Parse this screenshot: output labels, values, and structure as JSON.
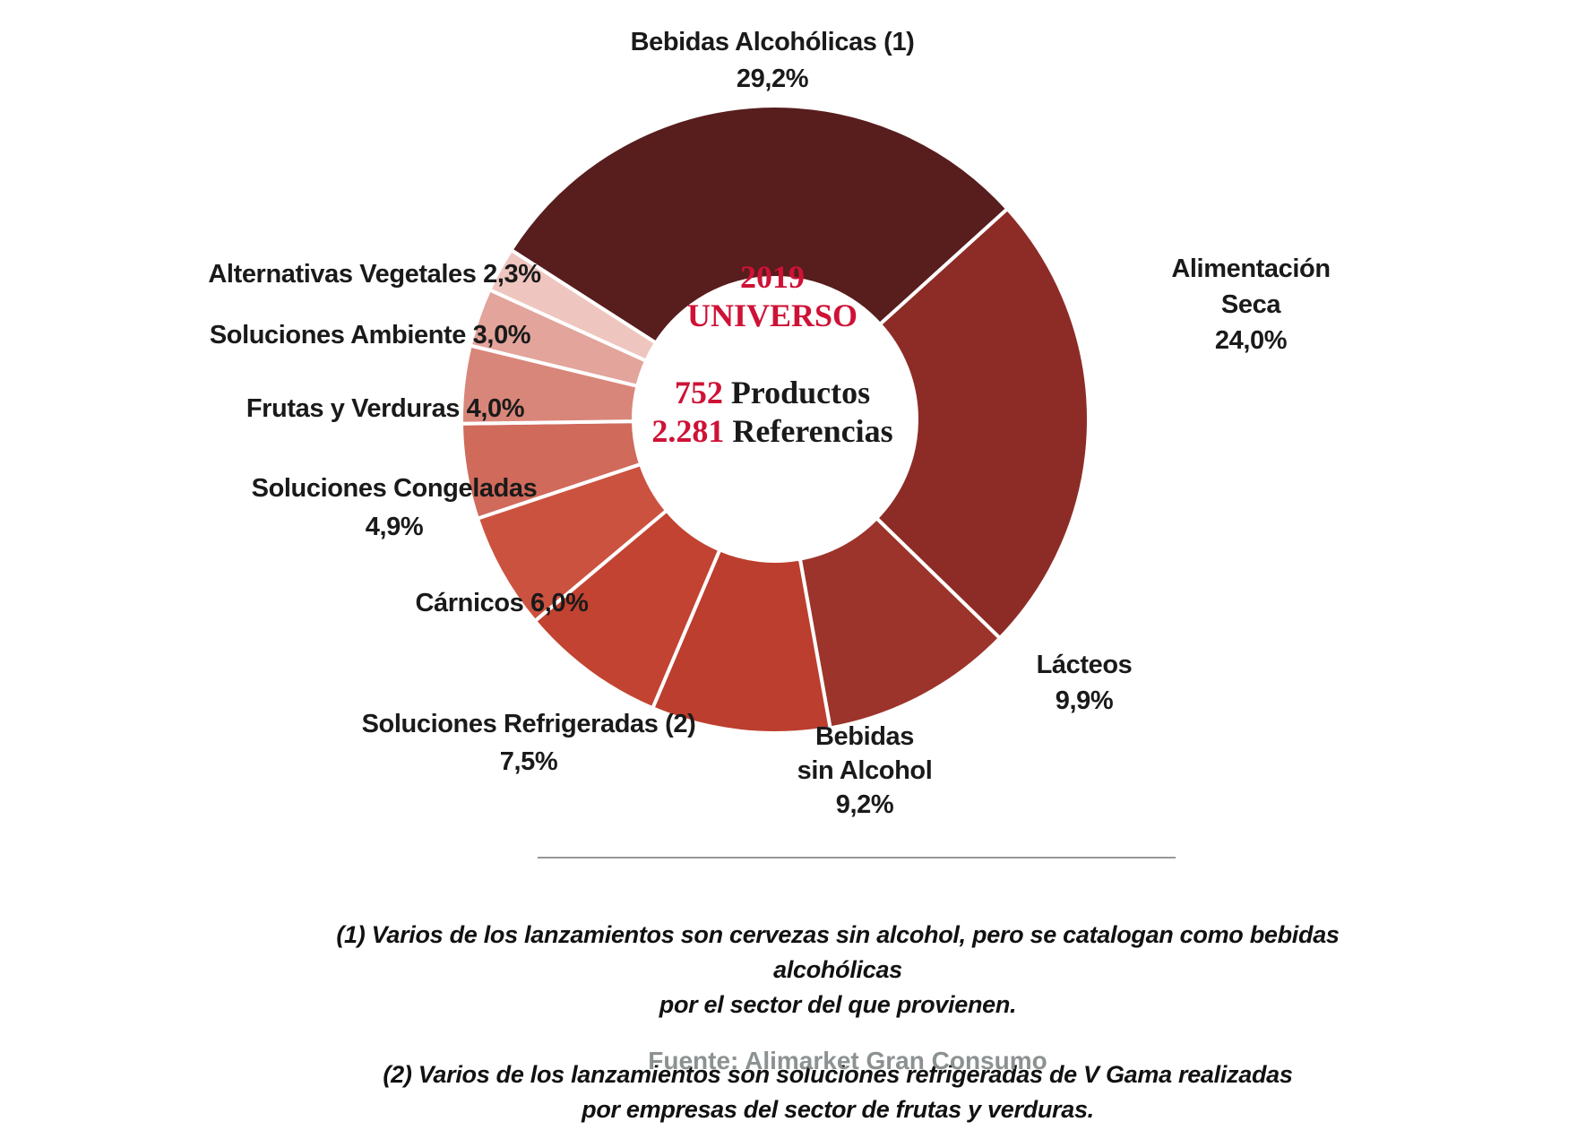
{
  "chart_data": {
    "type": "pie",
    "subtype": "donut",
    "units": "%",
    "start_angle_deg": -57.3,
    "inner_radius_ratio": 0.45,
    "gap_color": "#ffffff",
    "legend": "none (direct callout labels)",
    "categories": [
      "Bebidas Alcohólicas (1)",
      "Alimentación Seca",
      "Lácteos",
      "Bebidas sin Alcohol",
      "Soluciones Refrigeradas (2)",
      "Cárnicos",
      "Soluciones Congeladas",
      "Frutas y Verduras",
      "Soluciones Ambiente",
      "Alternativas Vegetales"
    ],
    "values": [
      29.2,
      24.0,
      9.9,
      9.2,
      7.5,
      6.0,
      4.9,
      4.0,
      3.0,
      2.3
    ],
    "slices": [
      {
        "label": "Bebidas Alcohólicas (1)",
        "value": 29.2,
        "pct_label": "29,2%",
        "color": "#581d1d",
        "callout": "Bebidas Alcohólicas (1)\n29,2%"
      },
      {
        "label": "Alimentación Seca",
        "value": 24.0,
        "pct_label": "24,0%",
        "color": "#8d2c27",
        "callout": "Alimentación\nSeca\n24,0%"
      },
      {
        "label": "Lácteos",
        "value": 9.9,
        "pct_label": "9,9%",
        "color": "#9c342b",
        "callout": "Lácteos\n9,9%"
      },
      {
        "label": "Bebidas sin Alcohol",
        "value": 9.2,
        "pct_label": "9,2%",
        "color": "#bc3e2e",
        "callout": "Bebidas\nsin Alcohol\n9,2%"
      },
      {
        "label": "Soluciones Refrigeradas (2)",
        "value": 7.5,
        "pct_label": "7,5%",
        "color": "#c24331",
        "callout": "Soluciones Refrigeradas (2)\n7,5%"
      },
      {
        "label": "Cárnicos",
        "value": 6.0,
        "pct_label": "6,0%",
        "color": "#cc5240",
        "callout": "Cárnicos 6,0%"
      },
      {
        "label": "Soluciones Congeladas",
        "value": 4.9,
        "pct_label": "4,9%",
        "color": "#d06a5b",
        "callout": "Soluciones Congeladas\n4,9%"
      },
      {
        "label": "Frutas y Verduras",
        "value": 4.0,
        "pct_label": "4,0%",
        "color": "#d9867a",
        "callout": "Frutas y Verduras 4,0%"
      },
      {
        "label": "Soluciones Ambiente",
        "value": 3.0,
        "pct_label": "3,0%",
        "color": "#e2a49b",
        "callout": "Soluciones Ambiente 3,0%"
      },
      {
        "label": "Alternativas Vegetales",
        "value": 2.3,
        "pct_label": "2,3%",
        "color": "#efc6bf",
        "callout": "Alternativas Vegetales 2,3%"
      }
    ]
  },
  "center": {
    "year": "2019",
    "universe_label": "UNIVERSO",
    "products_value": "752",
    "products_label": " Productos",
    "references_value": "2.281",
    "references_label": " Referencias"
  },
  "footnotes": {
    "note1": "(1) Varios de los lanzamientos son cervezas sin alcohol, pero se catalogan como bebidas alcohólicas\npor el sector del que provienen.",
    "note2": "(2) Varios de los lanzamientos son soluciones refrigeradas de V Gama realizadas\npor empresas del sector de frutas y verduras."
  },
  "source": "Fuente: Alimarket Gran Consumo",
  "colors": {
    "accent_red": "#ce1236",
    "text_black": "#1a1a1a",
    "source_gray": "#8c9191"
  }
}
